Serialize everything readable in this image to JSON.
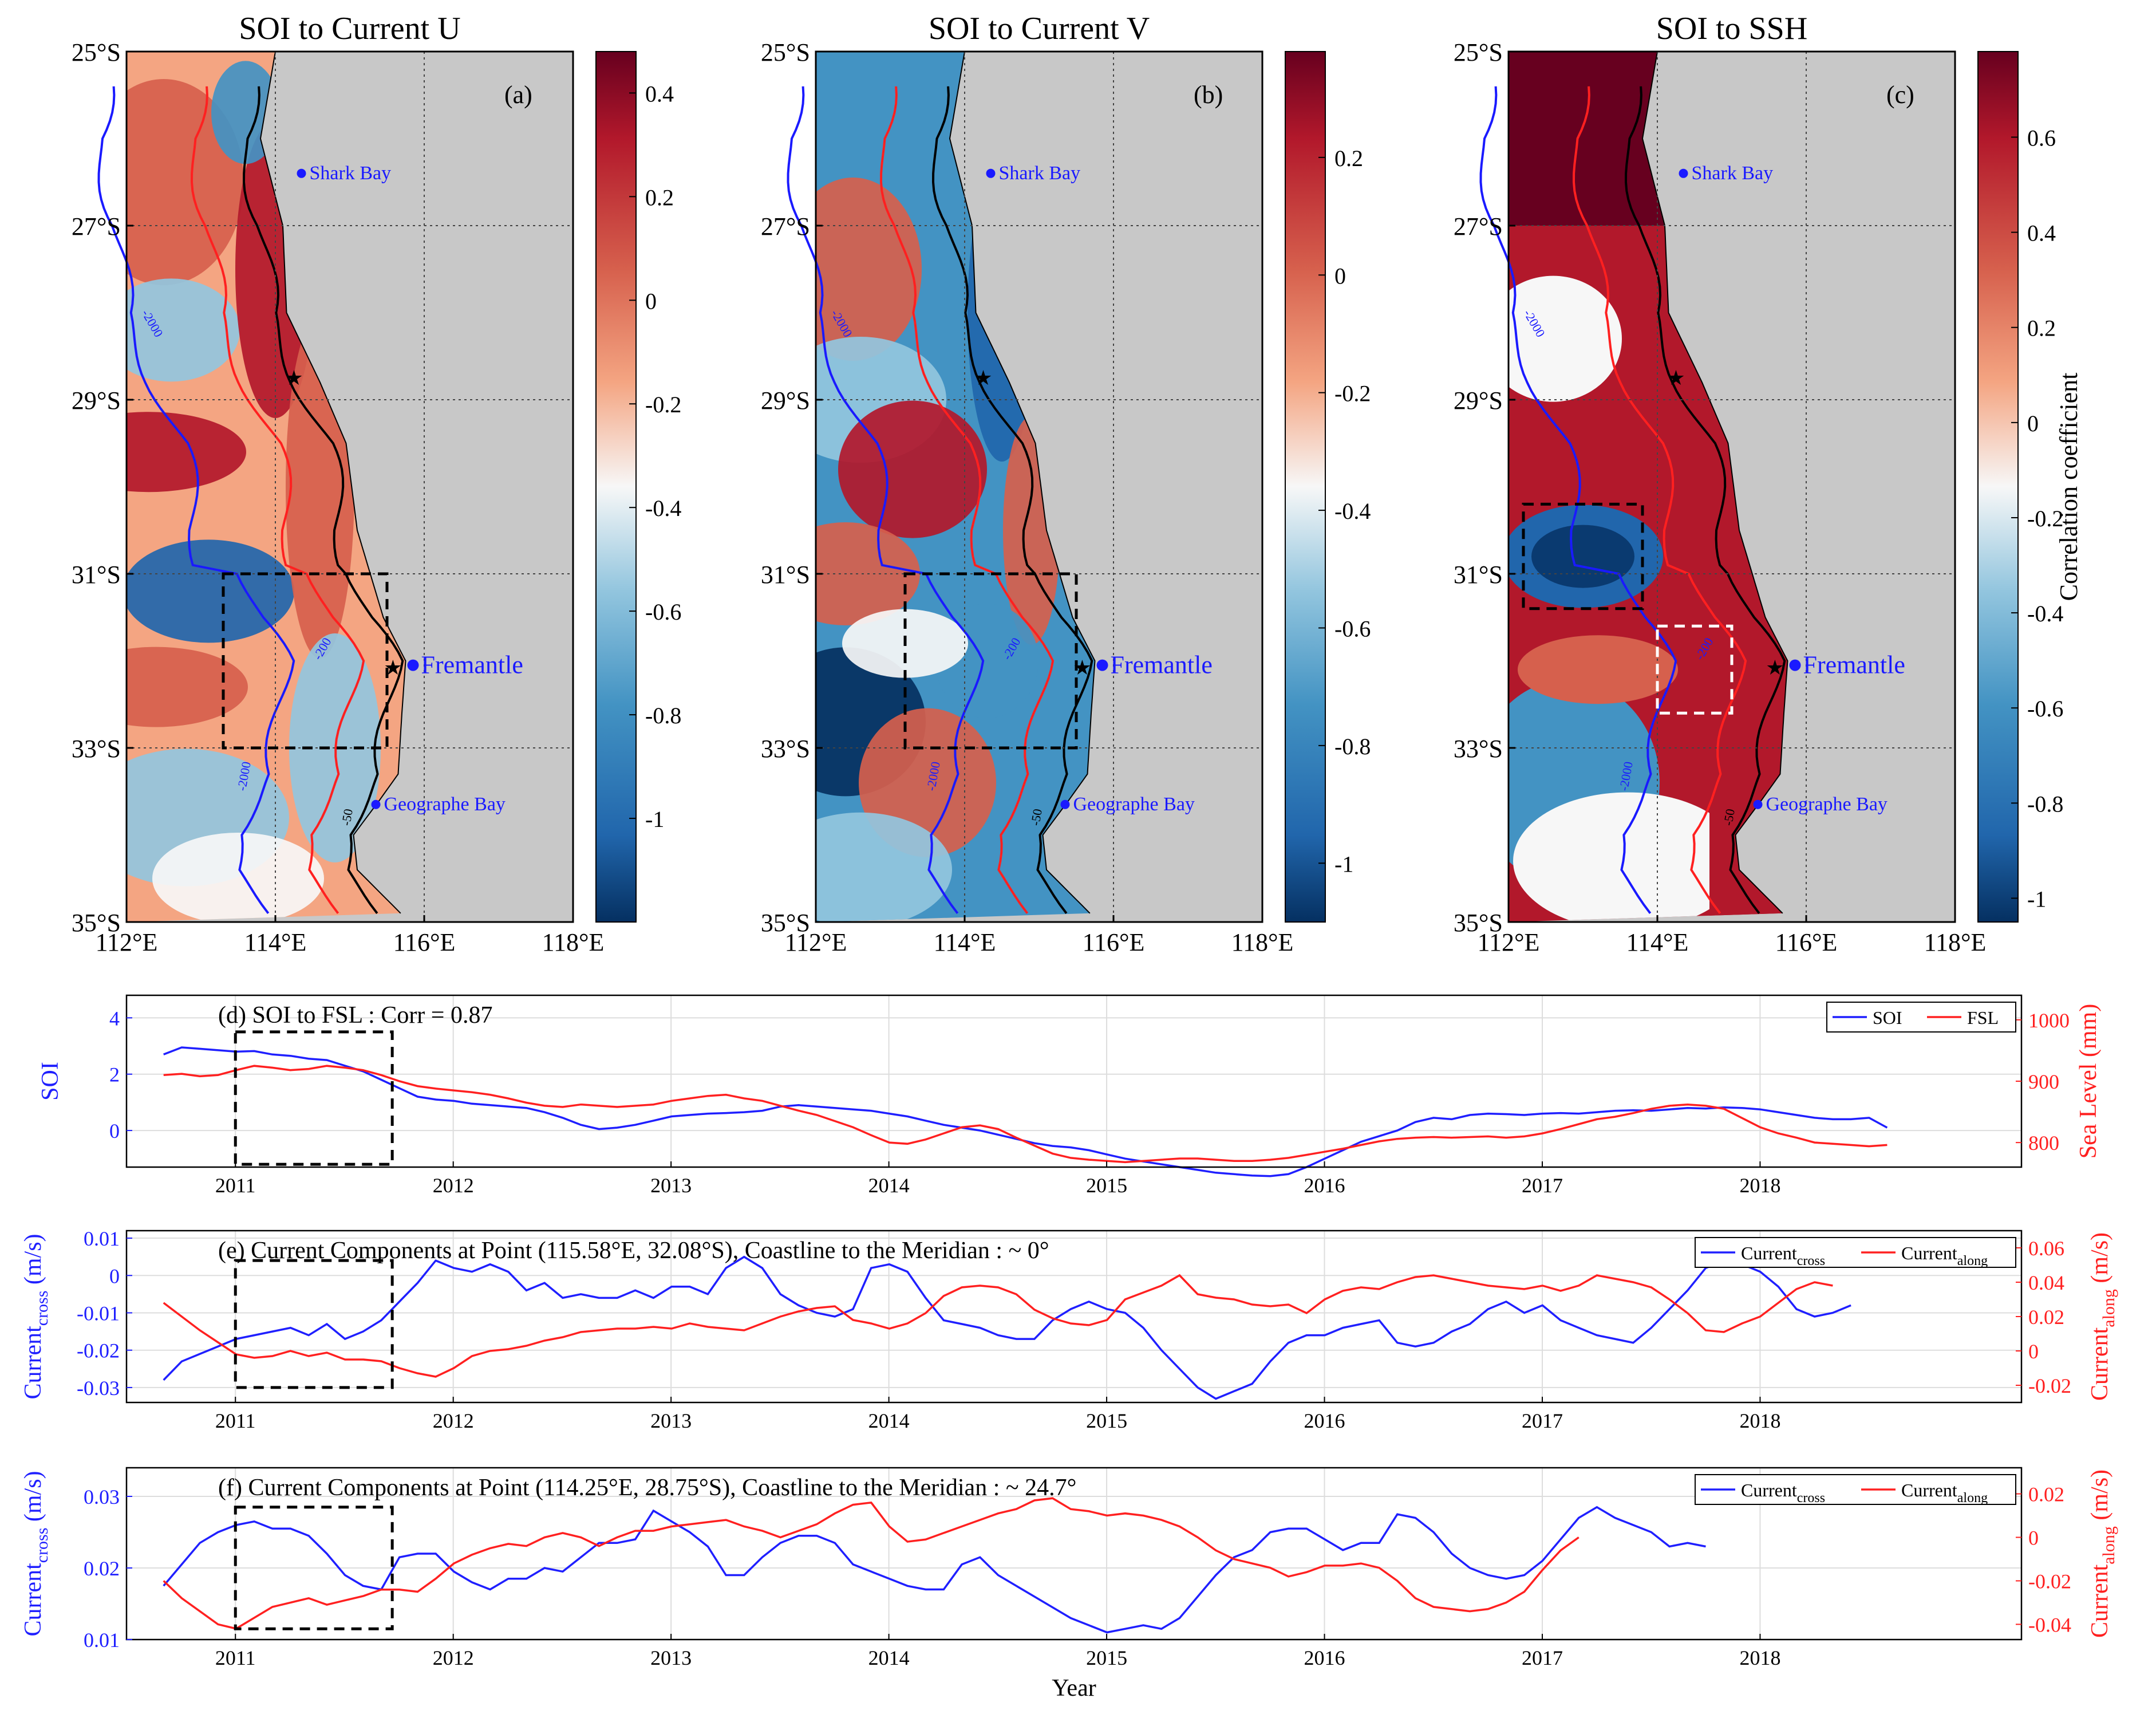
{
  "colors": {
    "land": "#c8c8c8",
    "blue_series": "#1f1fff",
    "red_series": "#ff2020",
    "contour_blue": "#1a1aff",
    "contour_red": "#ff2020",
    "dark_red": "#67001f",
    "dark_blue": "#053061"
  },
  "chart_data": [
    {
      "id": "map_a",
      "type": "heatmap",
      "title": "SOI to Current U",
      "panel_label": "(a)",
      "lat_ticks": [
        "25°S",
        "27°S",
        "29°S",
        "31°S",
        "33°S",
        "35°S"
      ],
      "lon_ticks": [
        "112°E",
        "114°E",
        "116°E",
        "118°E"
      ],
      "lon_range": [
        112,
        118
      ],
      "lat_range": [
        -35,
        -25
      ],
      "colorbar": {
        "range": [
          -1.2,
          0.48
        ],
        "ticks": [
          0.4,
          0.2,
          0,
          -0.2,
          -0.4,
          -0.6,
          -0.8,
          -1
        ],
        "tick_labels": [
          "0.4",
          "0.2",
          "0",
          "-0.2",
          "-0.4",
          "-0.6",
          "-0.8",
          "-1"
        ]
      },
      "places": [
        {
          "name": "Shark Bay",
          "lon": 114.35,
          "lat": -26.4,
          "size": "small"
        },
        {
          "name": "Fremantle",
          "lon": 115.85,
          "lat": -32.05,
          "size": "large"
        },
        {
          "name": "Geographe Bay",
          "lon": 115.35,
          "lat": -33.65,
          "size": "small"
        }
      ],
      "stars": [
        {
          "lon": 114.25,
          "lat": -28.75
        },
        {
          "lon": 115.58,
          "lat": -32.08
        }
      ],
      "box": {
        "lon": [
          113.3,
          115.5
        ],
        "lat": [
          -33,
          -31
        ],
        "color": "black"
      },
      "contour_labels": [
        "-2000",
        "-200",
        "-50"
      ]
    },
    {
      "id": "map_b",
      "type": "heatmap",
      "title": "SOI to Current V",
      "panel_label": "(b)",
      "lat_ticks": [
        "25°S",
        "27°S",
        "29°S",
        "31°S",
        "33°S",
        "35°S"
      ],
      "lon_ticks": [
        "112°E",
        "114°E",
        "116°E",
        "118°E"
      ],
      "lon_range": [
        112,
        118
      ],
      "lat_range": [
        -35,
        -25
      ],
      "colorbar": {
        "range": [
          -1.1,
          0.38
        ],
        "ticks": [
          0.2,
          0,
          -0.2,
          -0.4,
          -0.6,
          -0.8,
          -1
        ],
        "tick_labels": [
          "0.2",
          "0",
          "-0.2",
          "-0.4",
          "-0.6",
          "-0.8",
          "-1"
        ]
      },
      "places": [
        {
          "name": "Shark Bay",
          "lon": 114.35,
          "lat": -26.4,
          "size": "small"
        },
        {
          "name": "Fremantle",
          "lon": 115.85,
          "lat": -32.05,
          "size": "large"
        },
        {
          "name": "Geographe Bay",
          "lon": 115.35,
          "lat": -33.65,
          "size": "small"
        }
      ],
      "stars": [
        {
          "lon": 114.25,
          "lat": -28.75
        },
        {
          "lon": 115.58,
          "lat": -32.08
        }
      ],
      "box": {
        "lon": [
          113.2,
          115.5
        ],
        "lat": [
          -33,
          -31
        ],
        "color": "black"
      },
      "contour_labels": [
        "-2000",
        "-200",
        "-50"
      ]
    },
    {
      "id": "map_c",
      "type": "heatmap",
      "title": "SOI to SSH",
      "panel_label": "(c)",
      "lat_ticks": [
        "25°S",
        "27°S",
        "29°S",
        "31°S",
        "33°S",
        "35°S"
      ],
      "lon_ticks": [
        "112°E",
        "114°E",
        "116°E",
        "118°E"
      ],
      "lon_range": [
        112,
        118
      ],
      "lat_range": [
        -35,
        -25
      ],
      "colorbar": {
        "range": [
          -1.05,
          0.78
        ],
        "ticks": [
          0.6,
          0.4,
          0.2,
          0,
          -0.2,
          -0.4,
          -0.6,
          -0.8,
          -1
        ],
        "tick_labels": [
          "0.6",
          "0.4",
          "0.2",
          "0",
          "-0.2",
          "-0.4",
          "-0.6",
          "-0.8",
          "-1"
        ],
        "label": "Correlation coefficient"
      },
      "places": [
        {
          "name": "Shark Bay",
          "lon": 114.35,
          "lat": -26.4,
          "size": "small"
        },
        {
          "name": "Fremantle",
          "lon": 115.85,
          "lat": -32.05,
          "size": "large"
        },
        {
          "name": "Geographe Bay",
          "lon": 115.35,
          "lat": -33.65,
          "size": "small"
        }
      ],
      "stars": [
        {
          "lon": 114.25,
          "lat": -28.75
        },
        {
          "lon": 115.58,
          "lat": -32.08
        }
      ],
      "boxes": [
        {
          "lon": [
            112.2,
            113.8
          ],
          "lat": [
            -31.4,
            -30.2
          ],
          "color": "black"
        },
        {
          "lon": [
            114.0,
            115.0
          ],
          "lat": [
            -32.6,
            -31.6
          ],
          "color": "white"
        }
      ],
      "contour_labels": [
        "-2000",
        "-200",
        "-50"
      ]
    },
    {
      "id": "series_d",
      "type": "line",
      "label": "(d)  SOI to FSL : Corr = 0.87",
      "x_start": 2010.67,
      "x_step": 0.0833,
      "xlim": [
        2010.5,
        2019.2
      ],
      "x_ticks": [
        2011,
        2012,
        2013,
        2014,
        2015,
        2016,
        2017,
        2018
      ],
      "left_axis": {
        "label": "SOI",
        "lim": [
          -1.3,
          4.8
        ],
        "ticks": [
          0,
          2,
          4
        ]
      },
      "right_axis": {
        "label": "Sea Level (mm)",
        "lim": [
          760,
          1040
        ],
        "ticks": [
          800,
          900,
          1000
        ]
      },
      "box": {
        "x": [
          2011.0,
          2011.72
        ],
        "y": [
          -1.2,
          3.5
        ]
      },
      "series": [
        {
          "name": "SOI",
          "axis": "left",
          "color": "#1f1fff",
          "values": [
            2.7,
            2.95,
            2.9,
            2.85,
            2.8,
            2.82,
            2.7,
            2.65,
            2.55,
            2.5,
            2.3,
            2.1,
            1.8,
            1.5,
            1.2,
            1.1,
            1.05,
            0.95,
            0.9,
            0.85,
            0.8,
            0.65,
            0.45,
            0.2,
            0.05,
            0.1,
            0.2,
            0.35,
            0.5,
            0.55,
            0.6,
            0.62,
            0.65,
            0.7,
            0.85,
            0.9,
            0.85,
            0.8,
            0.75,
            0.7,
            0.6,
            0.5,
            0.35,
            0.2,
            0.1,
            0.0,
            -0.15,
            -0.3,
            -0.45,
            -0.55,
            -0.6,
            -0.7,
            -0.85,
            -1.0,
            -1.1,
            -1.2,
            -1.3,
            -1.4,
            -1.5,
            -1.55,
            -1.6,
            -1.62,
            -1.55,
            -1.3,
            -1.0,
            -0.7,
            -0.4,
            -0.2,
            0.0,
            0.3,
            0.45,
            0.4,
            0.55,
            0.6,
            0.58,
            0.55,
            0.6,
            0.62,
            0.6,
            0.65,
            0.7,
            0.72,
            0.7,
            0.75,
            0.8,
            0.78,
            0.82,
            0.8,
            0.75,
            0.65,
            0.55,
            0.45,
            0.4,
            0.4,
            0.45,
            0.1
          ]
        },
        {
          "name": "FSL",
          "axis": "right",
          "color": "#ff2020",
          "values": [
            910,
            912,
            908,
            910,
            918,
            925,
            922,
            918,
            920,
            925,
            922,
            918,
            910,
            900,
            892,
            888,
            885,
            882,
            878,
            872,
            865,
            860,
            858,
            862,
            860,
            858,
            860,
            862,
            868,
            872,
            876,
            878,
            872,
            868,
            860,
            852,
            845,
            835,
            825,
            812,
            800,
            798,
            805,
            815,
            825,
            828,
            822,
            808,
            795,
            782,
            775,
            772,
            770,
            768,
            770,
            772,
            774,
            774,
            772,
            770,
            770,
            772,
            775,
            780,
            785,
            790,
            796,
            802,
            806,
            808,
            809,
            808,
            809,
            810,
            808,
            810,
            815,
            822,
            830,
            838,
            842,
            848,
            855,
            860,
            862,
            860,
            855,
            840,
            825,
            815,
            808,
            800,
            798,
            796,
            794,
            796
          ]
        }
      ]
    },
    {
      "id": "series_e",
      "type": "line",
      "label": "(e)  Current Components at Point (115.58°E, 32.08°S), Coastline to the Meridian : ~ 0°",
      "x_start": 2010.67,
      "x_step": 0.0833,
      "xlim": [
        2010.5,
        2019.2
      ],
      "x_ticks": [
        2011,
        2012,
        2013,
        2014,
        2015,
        2016,
        2017,
        2018
      ],
      "left_axis": {
        "label": "Current",
        "label_sub": "cross",
        "label_unit": "(m/s)",
        "lim": [
          -0.034,
          0.012
        ],
        "ticks": [
          0.01,
          0,
          -0.01,
          -0.02,
          -0.03
        ]
      },
      "right_axis": {
        "label": "Current",
        "label_sub": "along",
        "label_unit": "(m/s)",
        "lim": [
          -0.03,
          0.07
        ],
        "ticks": [
          0.06,
          0.04,
          0.02,
          0,
          -0.02
        ]
      },
      "box": {
        "x": [
          2011.0,
          2011.72
        ],
        "y": [
          -0.03,
          0.004
        ]
      },
      "series": [
        {
          "name": "Current_cross",
          "axis": "left",
          "color": "#1f1fff",
          "values": [
            -0.028,
            -0.023,
            -0.021,
            -0.019,
            -0.017,
            -0.016,
            -0.015,
            -0.014,
            -0.016,
            -0.013,
            -0.017,
            -0.015,
            -0.012,
            -0.007,
            -0.002,
            0.004,
            0.002,
            0.001,
            0.003,
            0.001,
            -0.004,
            -0.002,
            -0.006,
            -0.005,
            -0.006,
            -0.006,
            -0.004,
            -0.006,
            -0.003,
            -0.003,
            -0.005,
            0.002,
            0.005,
            0.002,
            -0.005,
            -0.008,
            -0.01,
            -0.011,
            -0.009,
            0.002,
            0.003,
            0.001,
            -0.006,
            -0.012,
            -0.013,
            -0.014,
            -0.016,
            -0.017,
            -0.017,
            -0.012,
            -0.009,
            -0.007,
            -0.009,
            -0.01,
            -0.014,
            -0.02,
            -0.025,
            -0.03,
            -0.033,
            -0.031,
            -0.029,
            -0.023,
            -0.018,
            -0.016,
            -0.016,
            -0.014,
            -0.013,
            -0.012,
            -0.018,
            -0.019,
            -0.018,
            -0.015,
            -0.013,
            -0.009,
            -0.007,
            -0.01,
            -0.008,
            -0.012,
            -0.014,
            -0.016,
            -0.017,
            -0.018,
            -0.014,
            -0.009,
            -0.004,
            0.002,
            0.004,
            0.003,
            0.001,
            -0.003,
            -0.009,
            -0.011,
            -0.01,
            -0.008
          ]
        },
        {
          "name": "Current_along",
          "axis": "right",
          "color": "#ff2020",
          "values": [
            0.028,
            0.02,
            0.012,
            0.005,
            -0.002,
            -0.004,
            -0.003,
            0.0,
            -0.003,
            -0.001,
            -0.005,
            -0.005,
            -0.006,
            -0.01,
            -0.013,
            -0.015,
            -0.01,
            -0.003,
            0.0,
            0.001,
            0.003,
            0.006,
            0.008,
            0.011,
            0.012,
            0.013,
            0.013,
            0.014,
            0.013,
            0.016,
            0.014,
            0.013,
            0.012,
            0.016,
            0.02,
            0.023,
            0.025,
            0.026,
            0.018,
            0.016,
            0.013,
            0.016,
            0.022,
            0.032,
            0.037,
            0.038,
            0.037,
            0.033,
            0.024,
            0.019,
            0.016,
            0.015,
            0.018,
            0.03,
            0.034,
            0.038,
            0.044,
            0.033,
            0.031,
            0.03,
            0.027,
            0.026,
            0.027,
            0.022,
            0.03,
            0.035,
            0.037,
            0.036,
            0.04,
            0.043,
            0.044,
            0.042,
            0.04,
            0.038,
            0.037,
            0.036,
            0.038,
            0.035,
            0.038,
            0.044,
            0.042,
            0.04,
            0.037,
            0.03,
            0.022,
            0.012,
            0.011,
            0.016,
            0.02,
            0.028,
            0.036,
            0.04,
            0.038
          ]
        }
      ]
    },
    {
      "id": "series_f",
      "type": "line",
      "label": "(f)  Current Components at Point (114.25°E, 28.75°S), Coastline to the Meridian : ~ 24.7°",
      "x_start": 2010.67,
      "x_step": 0.0833,
      "xlim": [
        2010.5,
        2019.2
      ],
      "x_ticks": [
        2011,
        2012,
        2013,
        2014,
        2015,
        2016,
        2017,
        2018
      ],
      "xlabel": "Year",
      "left_axis": {
        "label": "Current",
        "label_sub": "cross",
        "label_unit": "(m/s)",
        "lim": [
          0.01,
          0.034
        ],
        "ticks": [
          0.03,
          0.02,
          0.01
        ]
      },
      "right_axis": {
        "label": "Current",
        "label_sub": "along",
        "label_unit": "(m/s)",
        "lim": [
          -0.047,
          0.032
        ],
        "ticks": [
          0.02,
          0,
          -0.02,
          -0.04
        ]
      },
      "box": {
        "x": [
          2011.0,
          2011.72
        ],
        "y": [
          0.0115,
          0.0285
        ]
      },
      "series": [
        {
          "name": "Current_cross",
          "axis": "left",
          "color": "#1f1fff",
          "values": [
            0.0175,
            0.0205,
            0.0235,
            0.025,
            0.026,
            0.0265,
            0.0255,
            0.0255,
            0.0245,
            0.022,
            0.019,
            0.0175,
            0.017,
            0.0215,
            0.022,
            0.022,
            0.0195,
            0.018,
            0.017,
            0.0185,
            0.0185,
            0.02,
            0.0195,
            0.0215,
            0.0235,
            0.0235,
            0.024,
            0.028,
            0.0265,
            0.025,
            0.023,
            0.019,
            0.019,
            0.0215,
            0.0235,
            0.0245,
            0.0245,
            0.0235,
            0.0205,
            0.0195,
            0.0185,
            0.0175,
            0.017,
            0.017,
            0.0205,
            0.0215,
            0.019,
            0.0175,
            0.016,
            0.0145,
            0.013,
            0.012,
            0.011,
            0.0115,
            0.012,
            0.0115,
            0.013,
            0.016,
            0.019,
            0.0215,
            0.0225,
            0.025,
            0.0255,
            0.0255,
            0.024,
            0.0225,
            0.0235,
            0.0235,
            0.0275,
            0.027,
            0.025,
            0.022,
            0.02,
            0.019,
            0.0185,
            0.019,
            0.021,
            0.024,
            0.027,
            0.0285,
            0.027,
            0.026,
            0.025,
            0.023,
            0.0235,
            0.023
          ]
        },
        {
          "name": "Current_along",
          "axis": "right",
          "color": "#ff2020",
          "values": [
            -0.02,
            -0.028,
            -0.034,
            -0.04,
            -0.042,
            -0.037,
            -0.032,
            -0.03,
            -0.028,
            -0.031,
            -0.029,
            -0.027,
            -0.024,
            -0.024,
            -0.025,
            -0.019,
            -0.012,
            -0.008,
            -0.005,
            -0.003,
            -0.004,
            0.0,
            0.002,
            0.0,
            -0.004,
            0.0,
            0.003,
            0.003,
            0.005,
            0.006,
            0.007,
            0.008,
            0.005,
            0.003,
            0.0,
            0.003,
            0.006,
            0.011,
            0.015,
            0.016,
            0.005,
            -0.002,
            -0.001,
            0.002,
            0.005,
            0.008,
            0.011,
            0.013,
            0.017,
            0.018,
            0.013,
            0.012,
            0.01,
            0.011,
            0.01,
            0.008,
            0.005,
            0.0,
            -0.006,
            -0.01,
            -0.012,
            -0.014,
            -0.018,
            -0.016,
            -0.013,
            -0.013,
            -0.012,
            -0.014,
            -0.02,
            -0.028,
            -0.032,
            -0.033,
            -0.034,
            -0.033,
            -0.03,
            -0.025,
            -0.015,
            -0.006,
            0.0
          ]
        }
      ]
    }
  ]
}
